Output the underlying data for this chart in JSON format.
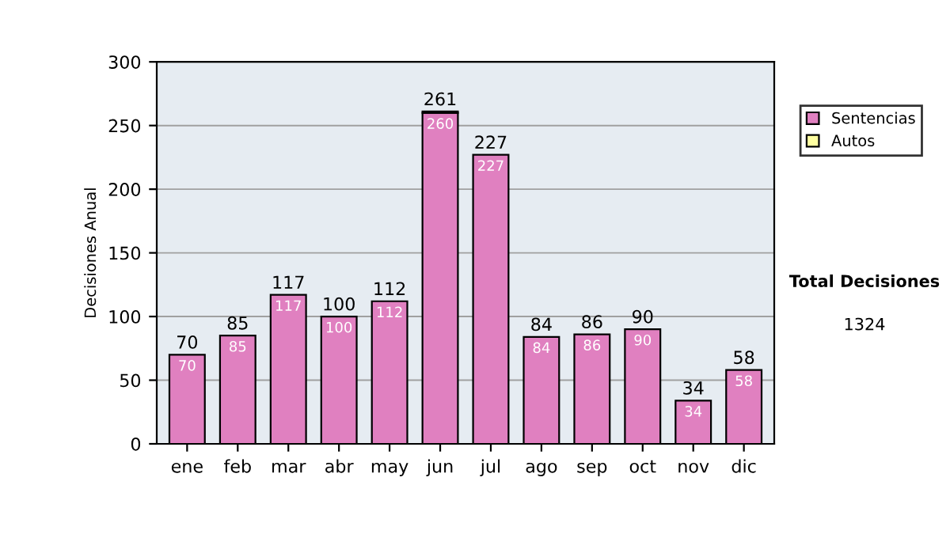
{
  "chart_data": {
    "type": "bar",
    "stacked": true,
    "ylabel": "Decisiones Anual",
    "categories": [
      "ene",
      "feb",
      "mar",
      "abr",
      "may",
      "jun",
      "jul",
      "ago",
      "sep",
      "oct",
      "nov",
      "dic"
    ],
    "series": [
      {
        "name": "Sentencias",
        "color": "#e080c0",
        "values": [
          70,
          85,
          117,
          100,
          112,
          260,
          227,
          84,
          86,
          90,
          34,
          58
        ],
        "value_labels": [
          "70",
          "85",
          "117",
          "100",
          "112",
          "260",
          "227",
          "84",
          "86",
          "90",
          "34",
          "58"
        ]
      },
      {
        "name": "Autos",
        "color": "#ffffa0",
        "values": [
          null,
          null,
          null,
          null,
          null,
          1,
          null,
          null,
          null,
          null,
          null,
          null
        ]
      }
    ],
    "totals": [
      "70",
      "85",
      "117",
      "100",
      "112",
      "261",
      "227",
      "84",
      "86",
      "90",
      "34",
      "58"
    ],
    "ylim": [
      0,
      300
    ],
    "yticks": [
      0,
      50,
      100,
      150,
      200,
      250,
      300
    ],
    "grid": "y",
    "legend": "right",
    "annotations": [
      "Total Decisiones",
      "1324"
    ]
  }
}
